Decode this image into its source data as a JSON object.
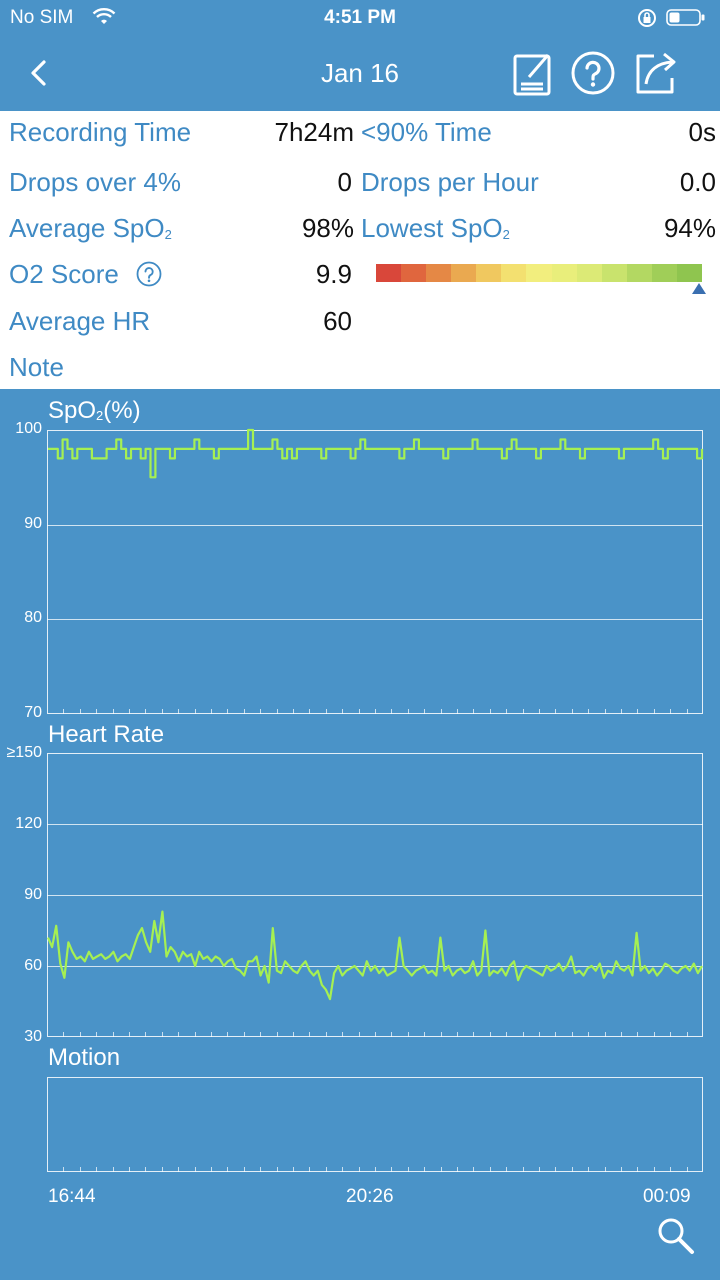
{
  "status_bar": {
    "carrier": "No SIM",
    "time": "4:51 PM"
  },
  "nav": {
    "title": "Jan 16"
  },
  "summary": {
    "recording_time_label": "Recording Time",
    "recording_time_value": "7h24m",
    "below90_label": "<90% Time",
    "below90_value": "0s",
    "drops_label": "Drops over 4%",
    "drops_value": "0",
    "drops_per_hour_label": "Drops per Hour",
    "drops_per_hour_value": "0.0",
    "avg_spo2_label": "Average SpO",
    "avg_spo2_sub": "2",
    "avg_spo2_value": "98%",
    "lowest_spo2_label": "Lowest SpO",
    "lowest_spo2_sub": "2",
    "lowest_spo2_value": "94%",
    "o2_score_label": "O2 Score",
    "o2_score_value": "9.9",
    "avg_hr_label": "Average HR",
    "avg_hr_value": "60",
    "note_label": "Note"
  },
  "score_scale_colors": [
    "#d9473a",
    "#e0663e",
    "#e58845",
    "#eaa950",
    "#f0c85f",
    "#f3e070",
    "#f2ee7e",
    "#e9ee7b",
    "#dcea76",
    "#c9e36d",
    "#b3d862",
    "#a0ce58",
    "#8fc54f"
  ],
  "score_scale_value": 0.99,
  "colors": {
    "background": "#4a93c8",
    "trace": "#a6f052",
    "label_blue": "#3f8ac4"
  },
  "chart_data": [
    {
      "type": "line",
      "title": "SpO",
      "title_sub": "2",
      "title_suffix": "(%)",
      "ylim": [
        70,
        100
      ],
      "yticks": [
        "100",
        "90",
        "80",
        "70"
      ],
      "x_range": [
        "16:44",
        "00:09"
      ],
      "series": [
        {
          "values": [
            98,
            98,
            97,
            99,
            98,
            97,
            98,
            98,
            98,
            97,
            97,
            97,
            98,
            98,
            99,
            98,
            97,
            98,
            98,
            97,
            98,
            95,
            98,
            98,
            98,
            97,
            98,
            98,
            98,
            98,
            99,
            98,
            98,
            98,
            97,
            98,
            98,
            98,
            98,
            98,
            98,
            100,
            98,
            98,
            98,
            98,
            99,
            98,
            97,
            98,
            97,
            98,
            98,
            98,
            98,
            98,
            97,
            98,
            98,
            98,
            98,
            98,
            97,
            98,
            99,
            98,
            98,
            98,
            98,
            98,
            98,
            98,
            97,
            98,
            98,
            99,
            98,
            98,
            98,
            98,
            98,
            97,
            98,
            98,
            98,
            98,
            98,
            99,
            98,
            98,
            98,
            98,
            98,
            97,
            98,
            99,
            98,
            98,
            98,
            98,
            97,
            98,
            98,
            98,
            98,
            99,
            98,
            98,
            98,
            97,
            98,
            98,
            98,
            98,
            98,
            98,
            98,
            97,
            98,
            98,
            98,
            98,
            98,
            98,
            99,
            98,
            97,
            98,
            98,
            98,
            98,
            98,
            98,
            97,
            98
          ]
        }
      ]
    },
    {
      "type": "line",
      "title": "Heart Rate",
      "ylim": [
        30,
        150
      ],
      "yticks": [
        "≥150",
        "120",
        "90",
        "60",
        "30"
      ],
      "x_range": [
        "16:44",
        "00:09"
      ],
      "series": [
        {
          "values": [
            72,
            68,
            77,
            61,
            55,
            70,
            66,
            63,
            64,
            62,
            66,
            63,
            64,
            65,
            63,
            64,
            66,
            62,
            64,
            65,
            63,
            68,
            73,
            76,
            70,
            66,
            79,
            70,
            83,
            64,
            68,
            66,
            62,
            66,
            64,
            65,
            60,
            66,
            63,
            64,
            62,
            64,
            63,
            60,
            62,
            63,
            59,
            58,
            56,
            62,
            62,
            64,
            56,
            60,
            53,
            76,
            58,
            57,
            62,
            60,
            58,
            57,
            60,
            62,
            58,
            56,
            58,
            52,
            50,
            46,
            57,
            60,
            56,
            58,
            59,
            60,
            58,
            56,
            62,
            58,
            60,
            57,
            59,
            56,
            57,
            58,
            72,
            60,
            58,
            56,
            58,
            59,
            60,
            57,
            58,
            56,
            72,
            58,
            60,
            56,
            58,
            59,
            57,
            58,
            62,
            56,
            58,
            75,
            56,
            58,
            57,
            59,
            56,
            60,
            62,
            54,
            58,
            60,
            59,
            58,
            57,
            56,
            60,
            58,
            59,
            61,
            58,
            60,
            64,
            57,
            58,
            56,
            59,
            60,
            58,
            61,
            55,
            58,
            57,
            62,
            59,
            58,
            60,
            56,
            74,
            58,
            60,
            57,
            59,
            56,
            58,
            61,
            60,
            58,
            57,
            59,
            60,
            58,
            61,
            57,
            60
          ]
        }
      ]
    },
    {
      "type": "line",
      "title": "Motion",
      "x_range": [
        "16:44",
        "00:09"
      ],
      "series": []
    }
  ],
  "x_axis": {
    "start": "16:44",
    "mid": "20:26",
    "end": "00:09"
  }
}
